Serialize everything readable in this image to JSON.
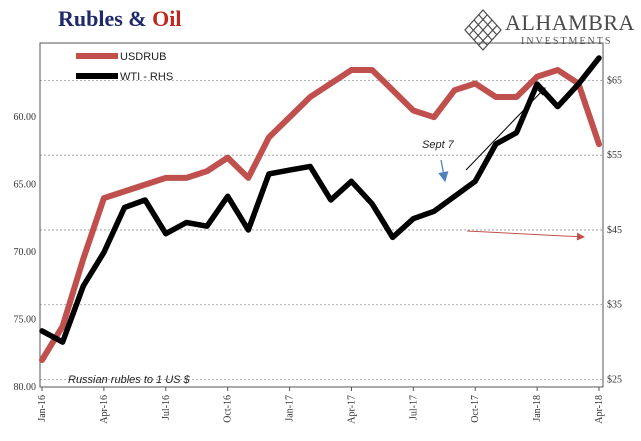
{
  "header": {
    "title_part1": "Rubles & ",
    "title_part2": "Oil",
    "title_color_main": "#1f2a6b",
    "title_color_accent": "#c0281f"
  },
  "logo": {
    "name": "ALHAMBRA",
    "sub": "INVESTMENTS",
    "icon": "diamond-lattice-icon"
  },
  "chart_data": {
    "type": "line",
    "x_dates_axis": [
      "Jan-16",
      "Apr-16",
      "Jul-16",
      "Oct-16",
      "Jan-17",
      "Apr-17",
      "Jul-17",
      "Oct-17",
      "Jan-18",
      "Apr-18"
    ],
    "left_axis": {
      "ticks": [
        "60.00",
        "65.00",
        "70.00",
        "75.00",
        "80.00"
      ],
      "values": [
        60,
        65,
        70,
        75,
        80
      ],
      "range": [
        54.5,
        80
      ],
      "inverted": true
    },
    "right_axis": {
      "ticks": [
        "$65",
        "$55",
        "$45",
        "$35",
        "$25"
      ],
      "values": [
        65,
        55,
        45,
        35,
        25
      ],
      "range": [
        24,
        70
      ]
    },
    "x": [
      "2016-01",
      "2016-02",
      "2016-03",
      "2016-04",
      "2016-05",
      "2016-06",
      "2016-07",
      "2016-08",
      "2016-09",
      "2016-10",
      "2016-11",
      "2016-12",
      "2017-01",
      "2017-02",
      "2017-03",
      "2017-04",
      "2017-05",
      "2017-06",
      "2017-07",
      "2017-08",
      "2017-09",
      "2017-10",
      "2017-11",
      "2017-12",
      "2018-01",
      "2018-02",
      "2018-03",
      "2018-04"
    ],
    "series": [
      {
        "name": "USDRUB",
        "axis": "left",
        "color": "#c0504d",
        "values": [
          78.0,
          75.5,
          70.5,
          66.0,
          65.5,
          65.0,
          64.5,
          64.5,
          64.0,
          63.0,
          64.5,
          61.5,
          60.0,
          58.5,
          57.5,
          56.5,
          56.5,
          58.0,
          59.5,
          60.0,
          58.0,
          57.5,
          58.5,
          58.5,
          57.0,
          56.5,
          57.5,
          62.0
        ]
      },
      {
        "name": "WTI - RHS",
        "axis": "right",
        "color": "#000000",
        "values": [
          31.5,
          30.0,
          37.5,
          42.0,
          48.0,
          49.0,
          44.5,
          46.0,
          45.5,
          49.5,
          45.0,
          52.5,
          53.0,
          53.5,
          49.0,
          51.5,
          48.5,
          44.0,
          46.5,
          47.5,
          49.5,
          51.5,
          56.5,
          58.0,
          64.5,
          61.5,
          64.5,
          68.0
        ]
      }
    ],
    "legend": [
      "USDRUB",
      "WTI - RHS"
    ],
    "legend_placement": "top-left",
    "annotations": {
      "sept7": "Sept 7",
      "left_axis_note": "Russian rubles to 1 US $"
    },
    "grid": true
  }
}
